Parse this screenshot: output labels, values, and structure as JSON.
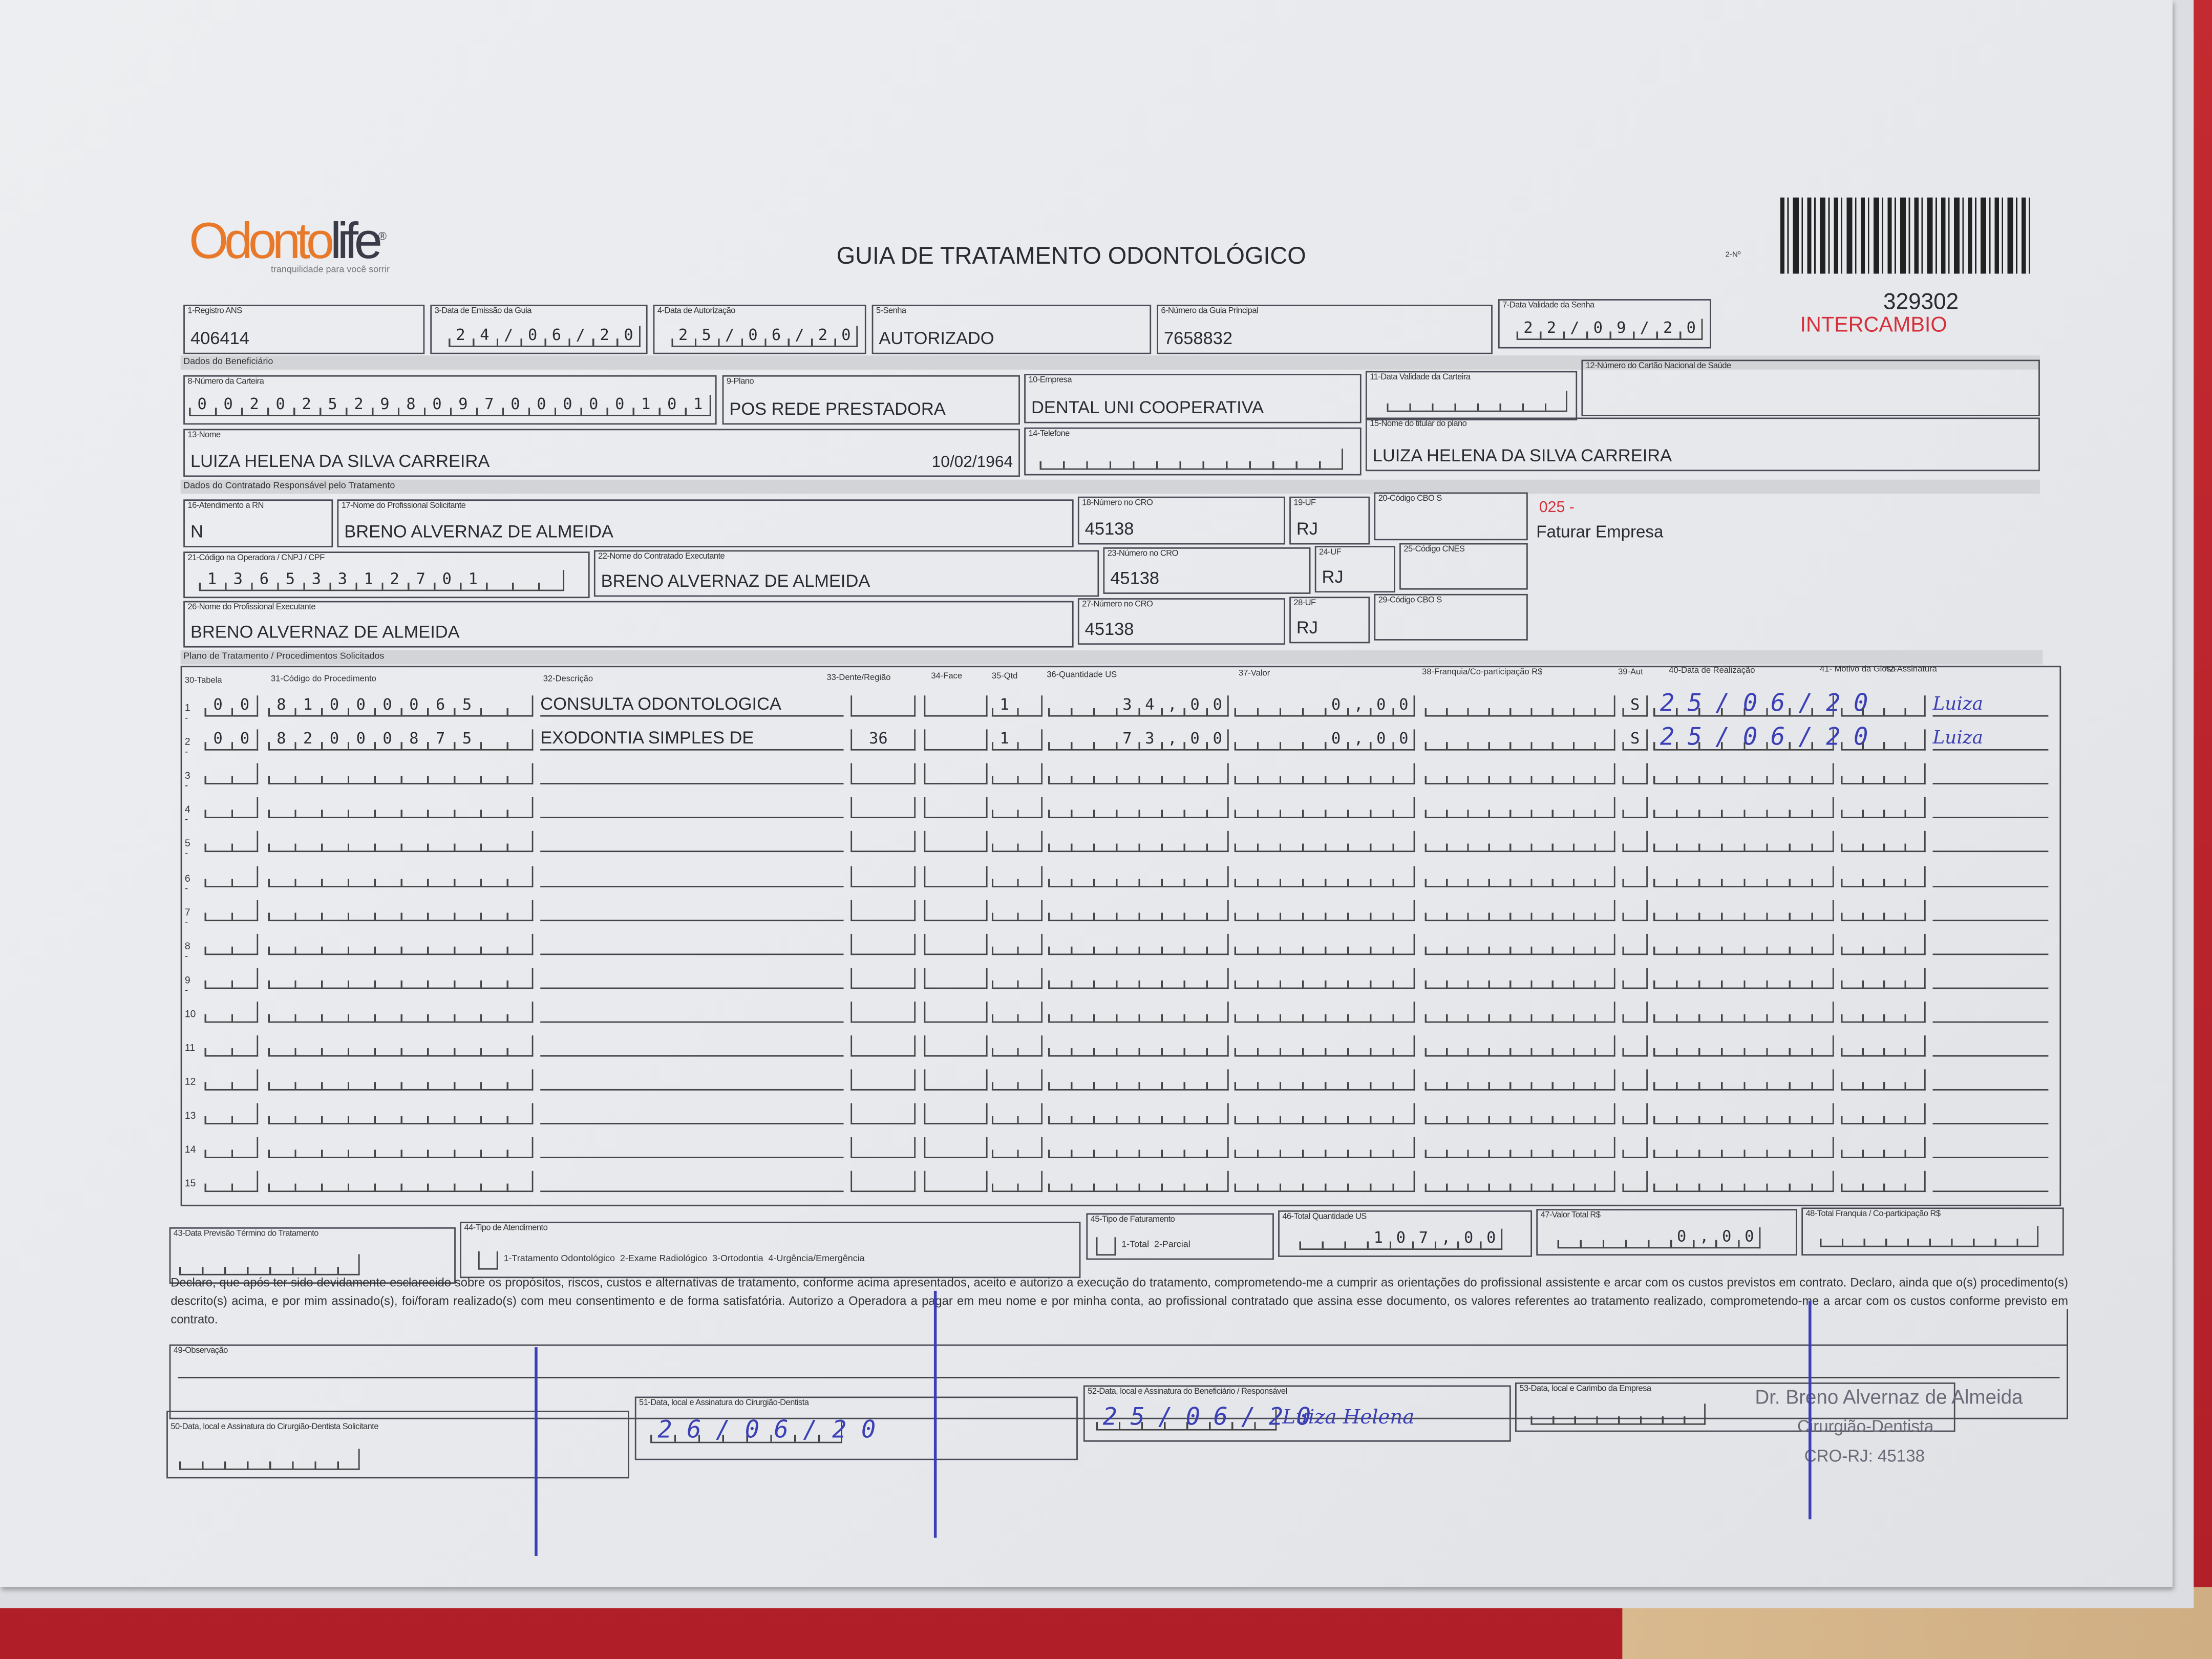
{
  "header": {
    "logo_brand": "Odontolife",
    "logo_tagline": "tranquilidade para você sorrir",
    "title": "GUIA DE TRATAMENTO ODONTOLÓGICO",
    "number_label": "2-Nº",
    "guide_number": "329302",
    "exchange_tag": "INTERCAMBIO",
    "billing_code": "025 -",
    "billing_note": "Faturar Empresa",
    "accent_orange": "#e8792a",
    "accent_red": "#d5303a"
  },
  "guide": {
    "f1_label": "1-Registro ANS",
    "f1_value": "406414",
    "f3_label": "3-Data de Emissão da Guia",
    "f3_value": "24/06/20",
    "f4_label": "4-Data de Autorização",
    "f4_value": "25/06/20",
    "f5_label": "5-Senha",
    "f5_value": "AUTORIZADO",
    "f6_label": "6-Número da Guia Principal",
    "f6_value": "7658832",
    "f7_label": "7-Data Validade da Senha",
    "f7_value": "22/09/20"
  },
  "beneficiary": {
    "section": "Dados do Beneficiário",
    "f8_label": "8-Número da Carteira",
    "f8_value": "00202529809700000101",
    "f9_label": "9-Plano",
    "f9_value": "POS REDE PRESTADORA",
    "f10_label": "10-Empresa",
    "f10_value": "DENTAL UNI  COOPERATIVA",
    "f11_label": "11-Data Validade da Carteira",
    "f11_value": "",
    "f12_label": "12-Número do Cartão Nacional de Saúde",
    "f12_value": "",
    "f13_label": "13-Nome",
    "f13_value": "LUIZA HELENA DA SILVA CARREIRA",
    "f13_birth": "10/02/1964",
    "f14_label": "14-Telefone",
    "f14_value": "",
    "f15_label": "15-Nome do titular do plano",
    "f15_value": "LUIZA HELENA DA SILVA CARREIRA"
  },
  "contractor": {
    "section": "Dados do Contratado Responsável pelo Tratamento",
    "f16_label": "16-Atendimento a RN",
    "f16_value": "N",
    "f17_label": "17-Nome do Profissional Solicitante",
    "f17_value": "BRENO ALVERNAZ DE ALMEIDA",
    "f18_label": "18-Número no CRO",
    "f18_value": "45138",
    "f19_label": "19-UF",
    "f19_value": "RJ",
    "f20_label": "20-Código CBO S",
    "f20_value": "",
    "f21_label": "21-Código na Operadora / CNPJ / CPF",
    "f21_value": "13653312701",
    "f22_label": "22-Nome do Contratado Executante",
    "f22_value": "BRENO ALVERNAZ DE ALMEIDA",
    "f23_label": "23-Número no CRO",
    "f23_value": "45138",
    "f24_label": "24-UF",
    "f24_value": "RJ",
    "f25_label": "25-Código CNES",
    "f25_value": "",
    "f26_label": "26-Nome do Profissional Executante",
    "f26_value": "BRENO ALVERNAZ DE ALMEIDA",
    "f27_label": "27-Número no CRO",
    "f27_value": "45138",
    "f28_label": "28-UF",
    "f28_value": "RJ",
    "f29_label": "29-Código CBO S",
    "f29_value": ""
  },
  "procedures": {
    "section": "Plano de Tratamento / Procedimentos Solicitados",
    "columns": [
      "30-Tabela",
      "31-Código do Procedimento",
      "32-Descrição",
      "33-Dente/Região",
      "34-Face",
      "35-Qtd",
      "36-Quantidade US",
      "37-Valor",
      "38-Franquia/Co-participação R$",
      "39-Aut",
      "40-Data de Realização",
      "41- Motivo da Glosa",
      "42-Assinatura"
    ],
    "rows": [
      {
        "n": "1 -",
        "tabela": "00",
        "codigo": "81000065",
        "descricao": "CONSULTA ODONTOLOGICA",
        "dente": "",
        "face": "",
        "qtd": "1",
        "qtd_us": "34,00",
        "valor": "0,00",
        "franquia": "",
        "aut": "S",
        "data": "25/06/20",
        "glosa": "",
        "assinatura": "Luiza"
      },
      {
        "n": "2 -",
        "tabela": "00",
        "codigo": "82000875",
        "descricao": "EXODONTIA SIMPLES DE",
        "dente": "36",
        "face": "",
        "qtd": "1",
        "qtd_us": "73,00",
        "valor": "0,00",
        "franquia": "",
        "aut": "S",
        "data": "25/06/20",
        "glosa": "",
        "assinatura": "Luiza"
      },
      {
        "n": "3 -"
      },
      {
        "n": "4 -"
      },
      {
        "n": "5 -"
      },
      {
        "n": "6 -"
      },
      {
        "n": "7 -"
      },
      {
        "n": "8 -"
      },
      {
        "n": "9 -"
      },
      {
        "n": "10"
      },
      {
        "n": "11"
      },
      {
        "n": "12"
      },
      {
        "n": "13"
      },
      {
        "n": "14"
      },
      {
        "n": "15"
      }
    ]
  },
  "totals": {
    "f43_label": "43-Data Previsão Término do Tratamento",
    "f43_value": "",
    "f44_label": "44-Tipo de Atendimento",
    "f44_options": "1-Tratamento Odontológico  2-Exame Radiológico  3-Ortodontia  4-Urgência/Emergência",
    "f45_label": "45-Tipo de Faturamento",
    "f45_options": "1-Total  2-Parcial",
    "f46_label": "46-Total Quantidade US",
    "f46_value": "107,00",
    "f47_label": "47-Valor Total R$",
    "f47_value": "0,00",
    "f48_label": "48-Total Franquia / Co-participação R$",
    "f48_value": ""
  },
  "declaration": "Declaro, que após ter sido devidamente esclarecido sobre os propósitos, riscos, custos e alternativas de tratamento, conforme acima apresentados, aceito e autorizo a execução do tratamento, comprometendo-me a cumprir as orientações do profissional assistente e arcar com os custos previstos em contrato. Declaro, ainda que o(s) procedimento(s) descrito(s) acima, e por mim assinado(s), foi/foram realizado(s) com meu consentimento e de forma satisfatória. Autorizo a Operadora a pagar em meu nome e por minha conta, ao profissional contratado que assina esse documento, os valores referentes ao tratamento realizado, comprometendo-me a arcar com os custos conforme previsto em contrato.",
  "observation_label": "49-Observação",
  "signatures": {
    "f50_label": "50-Data, local e Assinatura do Cirurgião-Dentista Solicitante",
    "f50_date": "",
    "f51_label": "51-Data, local e Assinatura do Cirurgião-Dentista",
    "f51_date": "26/06/20",
    "f52_label": "52-Data, local e Assinatura do Beneficiário / Responsável",
    "f52_date": "25/06/20",
    "f52_signature": "Luiza Helena",
    "f53_label": "53-Data, local e Carimbo da Empresa",
    "f53_date": "",
    "stamp_name": "Dr. Breno Alvernaz de Almeida",
    "stamp_title": "Cirurgião-Dentista",
    "stamp_cro": "CRO-RJ: 45138",
    "ink_color": "#3b3fb5"
  }
}
